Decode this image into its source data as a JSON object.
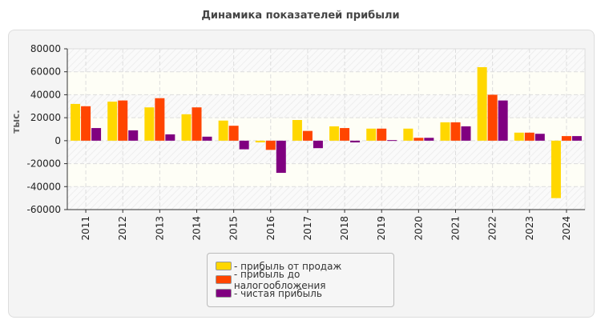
{
  "chart_data": {
    "type": "bar",
    "title": "Динамика показателей прибыли",
    "ylabel": "тыс.",
    "xlabel": "",
    "ylim": [
      -60000,
      80000
    ],
    "yticks": [
      80000,
      60000,
      40000,
      20000,
      0,
      -20000,
      -40000,
      -60000
    ],
    "grid": true,
    "legend_position": "bottom",
    "categories": [
      "2011",
      "2012",
      "2013",
      "2014",
      "2015",
      "2016",
      "2017",
      "2018",
      "2019",
      "2020",
      "2021",
      "2022",
      "2023",
      "2024"
    ],
    "series": [
      {
        "name": "- прибыль от продаж",
        "color": "#FFD700",
        "values": [
          32000,
          34000,
          29000,
          23000,
          17500,
          -1500,
          18000,
          12500,
          10500,
          10500,
          16000,
          64000,
          7000,
          -50000
        ]
      },
      {
        "name": "- прибыль до налогообложения",
        "color": "#FF4500",
        "values": [
          30000,
          35000,
          37000,
          29000,
          13000,
          -8000,
          8500,
          11000,
          10500,
          2500,
          16000,
          40000,
          7000,
          4000
        ]
      },
      {
        "name": "- чистая прибыль",
        "color": "#800080",
        "values": [
          11000,
          9000,
          5500,
          3500,
          -7500,
          -28000,
          -6500,
          -1500,
          500,
          2500,
          12500,
          35000,
          6000,
          4000
        ]
      }
    ]
  }
}
